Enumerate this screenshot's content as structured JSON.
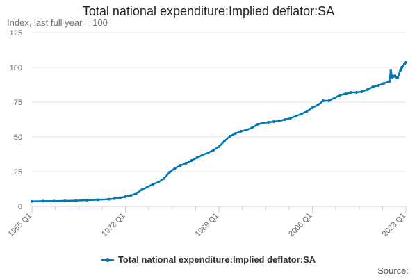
{
  "chart_data": {
    "type": "line",
    "title": "Total national expenditure:Implied deflator:SA",
    "subtitle": "Index, last full year = 100",
    "ylim": [
      0,
      125
    ],
    "yticks": [
      "0",
      "25",
      "50",
      "75",
      "100",
      "125"
    ],
    "xticks": [
      "1955 Q1",
      "1972 Q1",
      "1989 Q1",
      "2006 Q1",
      "2023 Q1"
    ],
    "series_color": "#0076b6",
    "grid": true,
    "legend": "bottom-center",
    "source_label": "Source:",
    "series": [
      {
        "name": "Total national expenditure:Implied deflator:SA",
        "points": [
          [
            "1955 Q1",
            3.6
          ],
          [
            "1957 Q1",
            3.8
          ],
          [
            "1959 Q1",
            3.9
          ],
          [
            "1961 Q1",
            4.0
          ],
          [
            "1963 Q1",
            4.2
          ],
          [
            "1965 Q1",
            4.5
          ],
          [
            "1967 Q1",
            4.8
          ],
          [
            "1969 Q1",
            5.2
          ],
          [
            "1970 Q1",
            5.6
          ],
          [
            "1971 Q1",
            6.2
          ],
          [
            "1972 Q1",
            7.0
          ],
          [
            "1973 Q1",
            7.8
          ],
          [
            "1974 Q1",
            9.5
          ],
          [
            "1975 Q1",
            12.0
          ],
          [
            "1976 Q1",
            14.0
          ],
          [
            "1977 Q1",
            16.0
          ],
          [
            "1978 Q1",
            17.5
          ],
          [
            "1979 Q1",
            20.0
          ],
          [
            "1980 Q1",
            24.5
          ],
          [
            "1981 Q1",
            27.5
          ],
          [
            "1982 Q1",
            29.5
          ],
          [
            "1983 Q1",
            31.0
          ],
          [
            "1984 Q1",
            33.0
          ],
          [
            "1985 Q1",
            35.0
          ],
          [
            "1986 Q1",
            37.0
          ],
          [
            "1987 Q1",
            38.5
          ],
          [
            "1988 Q1",
            40.5
          ],
          [
            "1989 Q1",
            43.0
          ],
          [
            "1990 Q1",
            47.0
          ],
          [
            "1991 Q1",
            50.5
          ],
          [
            "1992 Q1",
            52.5
          ],
          [
            "1993 Q1",
            54.0
          ],
          [
            "1994 Q1",
            55.0
          ],
          [
            "1995 Q1",
            56.5
          ],
          [
            "1996 Q1",
            59.0
          ],
          [
            "1997 Q1",
            60.0
          ],
          [
            "1998 Q1",
            60.5
          ],
          [
            "1999 Q1",
            61.0
          ],
          [
            "2000 Q1",
            61.5
          ],
          [
            "2001 Q1",
            62.5
          ],
          [
            "2002 Q1",
            63.5
          ],
          [
            "2003 Q1",
            65.0
          ],
          [
            "2004 Q1",
            66.5
          ],
          [
            "2005 Q1",
            68.5
          ],
          [
            "2006 Q1",
            71.0
          ],
          [
            "2007 Q1",
            73.0
          ],
          [
            "2008 Q1",
            76.0
          ],
          [
            "2009 Q1",
            76.0
          ],
          [
            "2010 Q1",
            78.0
          ],
          [
            "2011 Q1",
            80.0
          ],
          [
            "2012 Q1",
            81.0
          ],
          [
            "2013 Q1",
            82.0
          ],
          [
            "2014 Q1",
            82.0
          ],
          [
            "2015 Q1",
            82.5
          ],
          [
            "2016 Q1",
            84.0
          ],
          [
            "2017 Q1",
            86.0
          ],
          [
            "2018 Q1",
            87.0
          ],
          [
            "2019 Q1",
            88.5
          ],
          [
            "2020 Q1",
            90.0
          ],
          [
            "2020 Q2",
            98.0
          ],
          [
            "2020 Q3",
            93.0
          ],
          [
            "2020 Q4",
            93.5
          ],
          [
            "2021 Q1",
            94.0
          ],
          [
            "2021 Q2",
            93.0
          ],
          [
            "2021 Q3",
            92.5
          ],
          [
            "2021 Q4",
            95.0
          ],
          [
            "2022 Q1",
            98.0
          ],
          [
            "2022 Q2",
            100.0
          ],
          [
            "2022 Q3",
            101.0
          ],
          [
            "2022 Q4",
            102.5
          ],
          [
            "2023 Q1",
            103.5
          ]
        ]
      }
    ]
  }
}
